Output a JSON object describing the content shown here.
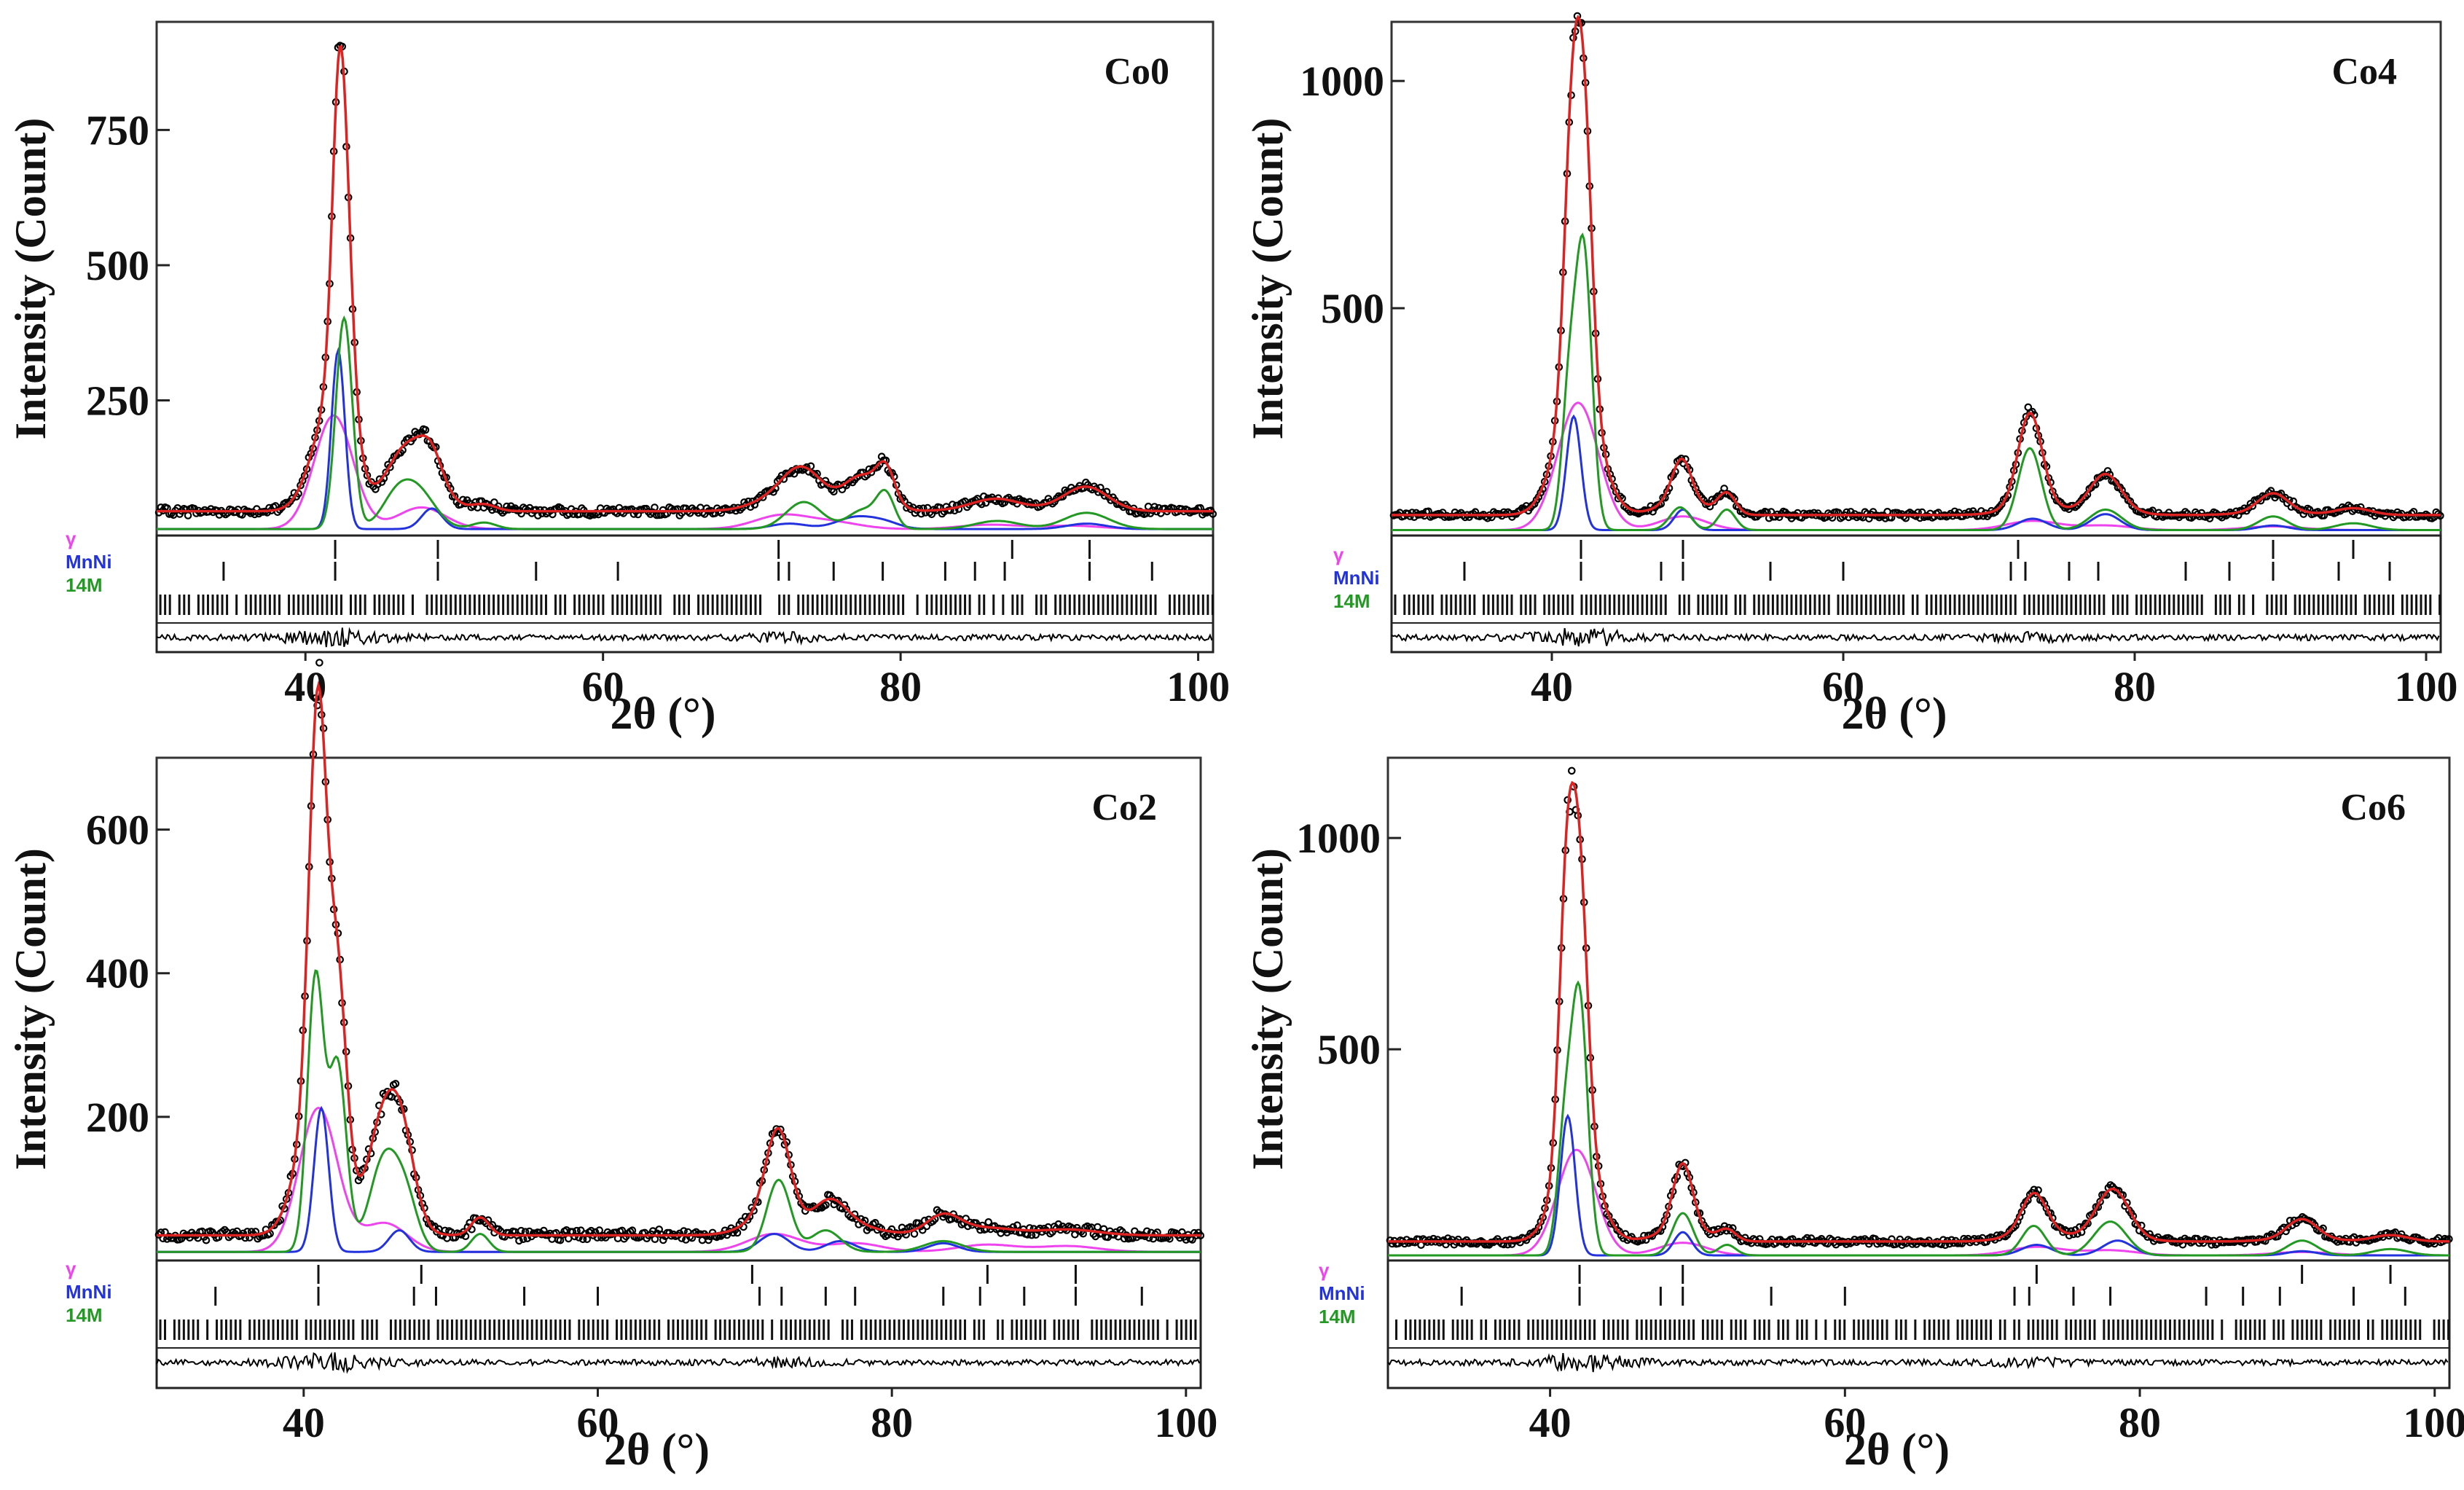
{
  "figure": {
    "y_axis_title": "Intensity (Count)",
    "x_axis_title": "2θ (°)"
  },
  "legend": [
    {
      "label": "γ",
      "color": "#ee44ee"
    },
    {
      "label": "MnNi",
      "color": "#2233dd"
    },
    {
      "label": "14M",
      "color": "#229922"
    }
  ],
  "colors": {
    "observed": "#000000",
    "calculated": "#dd2222",
    "gamma": "#ee44ee",
    "mnni": "#2233dd",
    "martensite_14M": "#229922",
    "difference": "#000000"
  },
  "chart_data": [
    {
      "type": "line",
      "sample": "Co0",
      "title": "Co0",
      "xlabel": "2θ (°)",
      "ylabel": "Intensity (Count)",
      "xlim": [
        30,
        101
      ],
      "ylim": [
        0,
        950
      ],
      "baseline": 45,
      "xticks": [
        40,
        60,
        80,
        100
      ],
      "xtick_labels": [
        "40",
        "60",
        "80",
        "100"
      ],
      "yticks": [
        250,
        500,
        750
      ],
      "ytick_labels": [
        "250",
        "500",
        "750"
      ],
      "series": [
        {
          "name": "γ",
          "peaks": [
            [
              41.9,
              210,
              1.3
            ],
            [
              47.8,
              40,
              1.6
            ],
            [
              72.0,
              25,
              1.8
            ],
            [
              75.5,
              12,
              1.8
            ],
            [
              86.0,
              8,
              2.0
            ],
            [
              91.5,
              6,
              2.0
            ]
          ]
        },
        {
          "name": "MnNi",
          "peaks": [
            [
              42.2,
              330,
              0.45
            ],
            [
              48.5,
              38,
              0.7
            ],
            [
              72.5,
              10,
              1.2
            ],
            [
              77.0,
              22,
              1.3
            ],
            [
              79.0,
              10,
              1.0
            ],
            [
              92.5,
              10,
              1.3
            ]
          ]
        },
        {
          "name": "14M",
          "peaks": [
            [
              42.6,
              390,
              0.55
            ],
            [
              46.0,
              45,
              1.0
            ],
            [
              47.5,
              70,
              1.2
            ],
            [
              52.0,
              12,
              0.8
            ],
            [
              73.5,
              50,
              1.2
            ],
            [
              77.5,
              35,
              1.0
            ],
            [
              79.0,
              60,
              0.6
            ],
            [
              86.5,
              15,
              1.5
            ],
            [
              92.5,
              30,
              1.5
            ]
          ]
        }
      ],
      "peak_max_approx": 905,
      "reflections": {
        "γ": [
          42.0,
          48.9,
          71.8,
          87.5,
          92.7
        ],
        "MnNi": [
          34.5,
          42.0,
          48.9,
          55.5,
          61.0,
          71.8,
          72.5,
          75.5,
          78.8,
          83.0,
          85.0,
          87.0,
          92.7,
          96.9
        ],
        "14M": []
      }
    },
    {
      "type": "line",
      "sample": "Co4",
      "title": "Co4",
      "xlabel": "2θ (°)",
      "ylabel": "Intensity (Count)",
      "xlim": [
        29,
        101
      ],
      "ylim": [
        0,
        1130
      ],
      "baseline": 45,
      "xticks": [
        40,
        60,
        80,
        100
      ],
      "xtick_labels": [
        "40",
        "60",
        "80",
        "100"
      ],
      "yticks": [
        500,
        1000
      ],
      "ytick_labels": [
        "500",
        "1000"
      ],
      "series": [
        {
          "name": "γ",
          "peaks": [
            [
              41.8,
              280,
              1.4
            ],
            [
              49.0,
              30,
              1.6
            ],
            [
              73.0,
              20,
              1.8
            ],
            [
              78.0,
              10,
              1.8
            ],
            [
              89.5,
              8,
              2.0
            ]
          ]
        },
        {
          "name": "MnNi",
          "peaks": [
            [
              41.5,
              250,
              0.5
            ],
            [
              49.0,
              45,
              0.6
            ],
            [
              73.0,
              25,
              1.0
            ],
            [
              78.0,
              35,
              1.0
            ],
            [
              89.5,
              10,
              1.0
            ]
          ]
        },
        {
          "name": "14M",
          "peaks": [
            [
              41.2,
              300,
              0.5
            ],
            [
              42.2,
              600,
              0.55
            ],
            [
              48.8,
              50,
              0.7
            ],
            [
              52.0,
              45,
              0.6
            ],
            [
              72.8,
              180,
              0.8
            ],
            [
              78.0,
              45,
              1.1
            ],
            [
              89.5,
              30,
              1.0
            ],
            [
              95.0,
              15,
              1.2
            ]
          ]
        }
      ],
      "peak_max_approx": 1100,
      "reflections": {
        "γ": [
          42.0,
          49.0,
          72.0,
          89.5,
          95.0
        ],
        "MnNi": [
          34.0,
          42.0,
          47.5,
          49.0,
          55.0,
          60.0,
          71.5,
          72.5,
          75.5,
          77.5,
          83.5,
          86.5,
          89.5,
          94.0,
          97.5
        ],
        "14M": []
      }
    },
    {
      "type": "line",
      "sample": "Co2",
      "title": "Co2",
      "xlabel": "2θ (°)",
      "ylabel": "Intensity (Count)",
      "xlim": [
        30,
        101
      ],
      "ylim": [
        0,
        700
      ],
      "baseline": 35,
      "xticks": [
        40,
        60,
        80,
        100
      ],
      "xtick_labels": [
        "40",
        "60",
        "80",
        "100"
      ],
      "yticks": [
        200,
        400,
        600
      ],
      "ytick_labels": [
        "200",
        "400",
        "600"
      ],
      "series": [
        {
          "name": "γ",
          "peaks": [
            [
              41.0,
              200,
              1.3
            ],
            [
              45.5,
              40,
              1.5
            ],
            [
              72.0,
              25,
              1.8
            ],
            [
              77.5,
              12,
              1.8
            ],
            [
              86.5,
              10,
              2.0
            ],
            [
              92.0,
              8,
              2.0
            ]
          ]
        },
        {
          "name": "MnNi",
          "peaks": [
            [
              41.2,
              200,
              0.5
            ],
            [
              46.5,
              30,
              0.7
            ],
            [
              72.0,
              25,
              1.0
            ],
            [
              76.5,
              15,
              1.0
            ],
            [
              83.5,
              12,
              1.0
            ]
          ]
        },
        {
          "name": "14M",
          "peaks": [
            [
              40.8,
              380,
              0.55
            ],
            [
              42.3,
              260,
              0.6
            ],
            [
              45.5,
              130,
              1.0
            ],
            [
              47.0,
              60,
              0.8
            ],
            [
              52.0,
              25,
              0.6
            ],
            [
              72.3,
              100,
              0.8
            ],
            [
              75.5,
              30,
              1.0
            ],
            [
              83.5,
              15,
              1.3
            ]
          ]
        }
      ],
      "peak_max_approx": 680,
      "reflections": {
        "γ": [
          41.0,
          48.0,
          70.5,
          86.5,
          92.5
        ],
        "MnNi": [
          34.0,
          41.0,
          47.5,
          49.0,
          55.0,
          60.0,
          71.0,
          72.5,
          75.5,
          77.5,
          83.5,
          86.0,
          89.0,
          92.5,
          97.0
        ],
        "14M": []
      }
    },
    {
      "type": "line",
      "sample": "Co6",
      "title": "Co6",
      "xlabel": "2θ (°)",
      "ylabel": "Intensity (Count)",
      "xlim": [
        29,
        101
      ],
      "ylim": [
        0,
        1190
      ],
      "baseline": 45,
      "xticks": [
        40,
        60,
        80,
        100
      ],
      "xtick_labels": [
        "40",
        "60",
        "80",
        "100"
      ],
      "yticks": [
        500,
        1000
      ],
      "ytick_labels": [
        "500",
        "1000"
      ],
      "series": [
        {
          "name": "γ",
          "peaks": [
            [
              41.8,
              250,
              1.3
            ],
            [
              49.0,
              30,
              1.6
            ],
            [
              73.0,
              20,
              1.8
            ],
            [
              78.0,
              12,
              1.8
            ],
            [
              91.0,
              8,
              2.0
            ]
          ]
        },
        {
          "name": "MnNi",
          "peaks": [
            [
              41.2,
              330,
              0.5
            ],
            [
              49.0,
              55,
              0.6
            ],
            [
              73.0,
              25,
              1.0
            ],
            [
              78.5,
              35,
              1.0
            ],
            [
              91.0,
              10,
              1.0
            ]
          ]
        },
        {
          "name": "14M",
          "peaks": [
            [
              41.0,
              280,
              0.5
            ],
            [
              42.0,
              600,
              0.55
            ],
            [
              49.0,
              100,
              0.7
            ],
            [
              52.0,
              25,
              0.6
            ],
            [
              72.8,
              70,
              0.8
            ],
            [
              78.0,
              80,
              1.1
            ],
            [
              91.0,
              35,
              1.0
            ],
            [
              97.0,
              15,
              1.2
            ]
          ]
        }
      ],
      "peak_max_approx": 1160,
      "reflections": {
        "γ": [
          42.0,
          49.0,
          73.0,
          91.0,
          97.0
        ],
        "MnNi": [
          34.0,
          42.0,
          47.5,
          49.0,
          55.0,
          60.0,
          71.5,
          72.5,
          75.5,
          78.0,
          84.5,
          87.0,
          89.5,
          94.5,
          98.0
        ],
        "14M": []
      }
    }
  ]
}
